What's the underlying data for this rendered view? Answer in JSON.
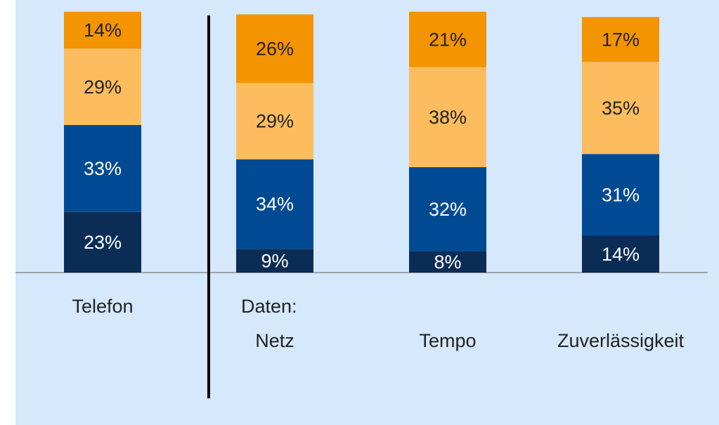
{
  "chart_data": {
    "type": "stacked_bar",
    "categories": [
      "Telefon",
      "Netz",
      "Tempo",
      "Zuverlässigkeit"
    ],
    "annotations": [
      "Daten:"
    ],
    "series": [
      {
        "color": "#0b2d55",
        "values": [
          23,
          9,
          8,
          14
        ],
        "value_labels": [
          "23%",
          "9%",
          "8%",
          "14%"
        ]
      },
      {
        "color": "#004a93",
        "values": [
          33,
          34,
          32,
          31
        ],
        "value_labels": [
          "33%",
          "34%",
          "32%",
          "31%"
        ]
      },
      {
        "color": "#fdbd5f",
        "values": [
          29,
          29,
          38,
          35
        ],
        "value_labels": [
          "29%",
          "29%",
          "38%",
          "35%"
        ]
      },
      {
        "color": "#f39400",
        "values": [
          14,
          26,
          21,
          17
        ],
        "value_labels": [
          "14%",
          "26%",
          "21%",
          "17%"
        ]
      }
    ]
  }
}
